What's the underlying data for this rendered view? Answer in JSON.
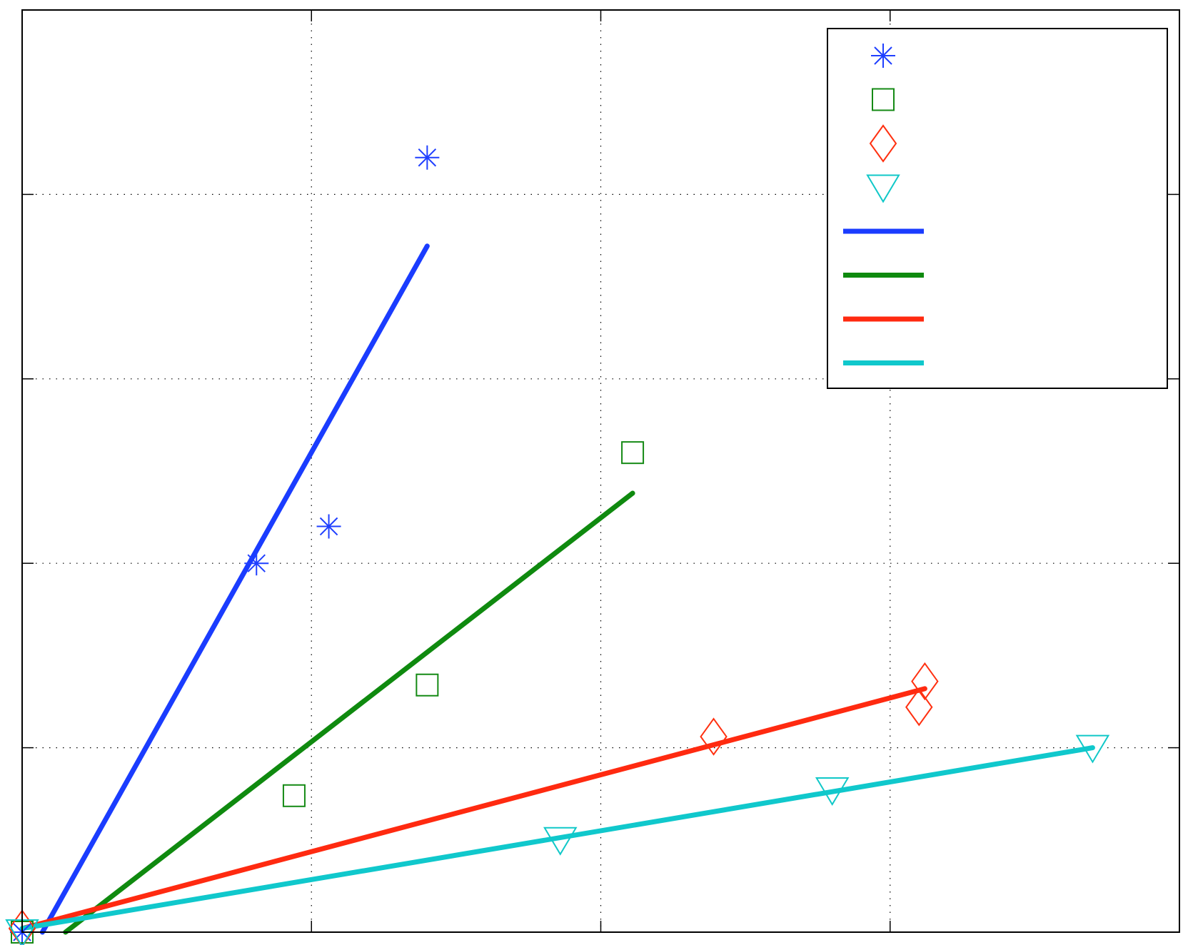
{
  "chart_data": {
    "type": "scatter",
    "xlim": [
      0,
      4
    ],
    "ylim": [
      0,
      5
    ],
    "grid": true,
    "legend_position": "top-right",
    "x_ticks": [
      0,
      1,
      2,
      3,
      4
    ],
    "y_ticks": [
      0,
      1,
      2,
      3,
      4,
      5
    ],
    "markers": [
      {
        "marker": "asterisk",
        "color": "#1f3fff",
        "points": [
          [
            0.0,
            0.0
          ],
          [
            0.81,
            2.0
          ],
          [
            1.06,
            2.2
          ],
          [
            1.4,
            4.2
          ]
        ]
      },
      {
        "marker": "square",
        "color": "#158a15",
        "points": [
          [
            0.0,
            0.0
          ],
          [
            0.94,
            0.74
          ],
          [
            1.4,
            1.34
          ],
          [
            2.11,
            2.6
          ]
        ]
      },
      {
        "marker": "diamond",
        "color": "#ff3010",
        "points": [
          [
            0.0,
            0.02
          ],
          [
            2.39,
            1.06
          ],
          [
            3.1,
            1.22
          ],
          [
            3.12,
            1.36
          ]
        ]
      },
      {
        "marker": "triangle-down",
        "color": "#10c8c8",
        "points": [
          [
            0.0,
            0.0
          ],
          [
            1.86,
            0.5
          ],
          [
            2.8,
            0.77
          ],
          [
            3.7,
            1.0
          ]
        ]
      }
    ],
    "fit_lines": [
      {
        "color": "#1a3cff",
        "from": [
          0.07,
          0.0
        ],
        "to": [
          1.4,
          3.72
        ]
      },
      {
        "color": "#0f8a0f",
        "from": [
          0.15,
          0.0
        ],
        "to": [
          2.11,
          2.38
        ]
      },
      {
        "color": "#ff2a10",
        "from": [
          0.0,
          0.02
        ],
        "to": [
          3.12,
          1.32
        ]
      },
      {
        "color": "#10c8cc",
        "from": [
          0.0,
          0.02
        ],
        "to": [
          3.7,
          1.0
        ]
      }
    ]
  }
}
